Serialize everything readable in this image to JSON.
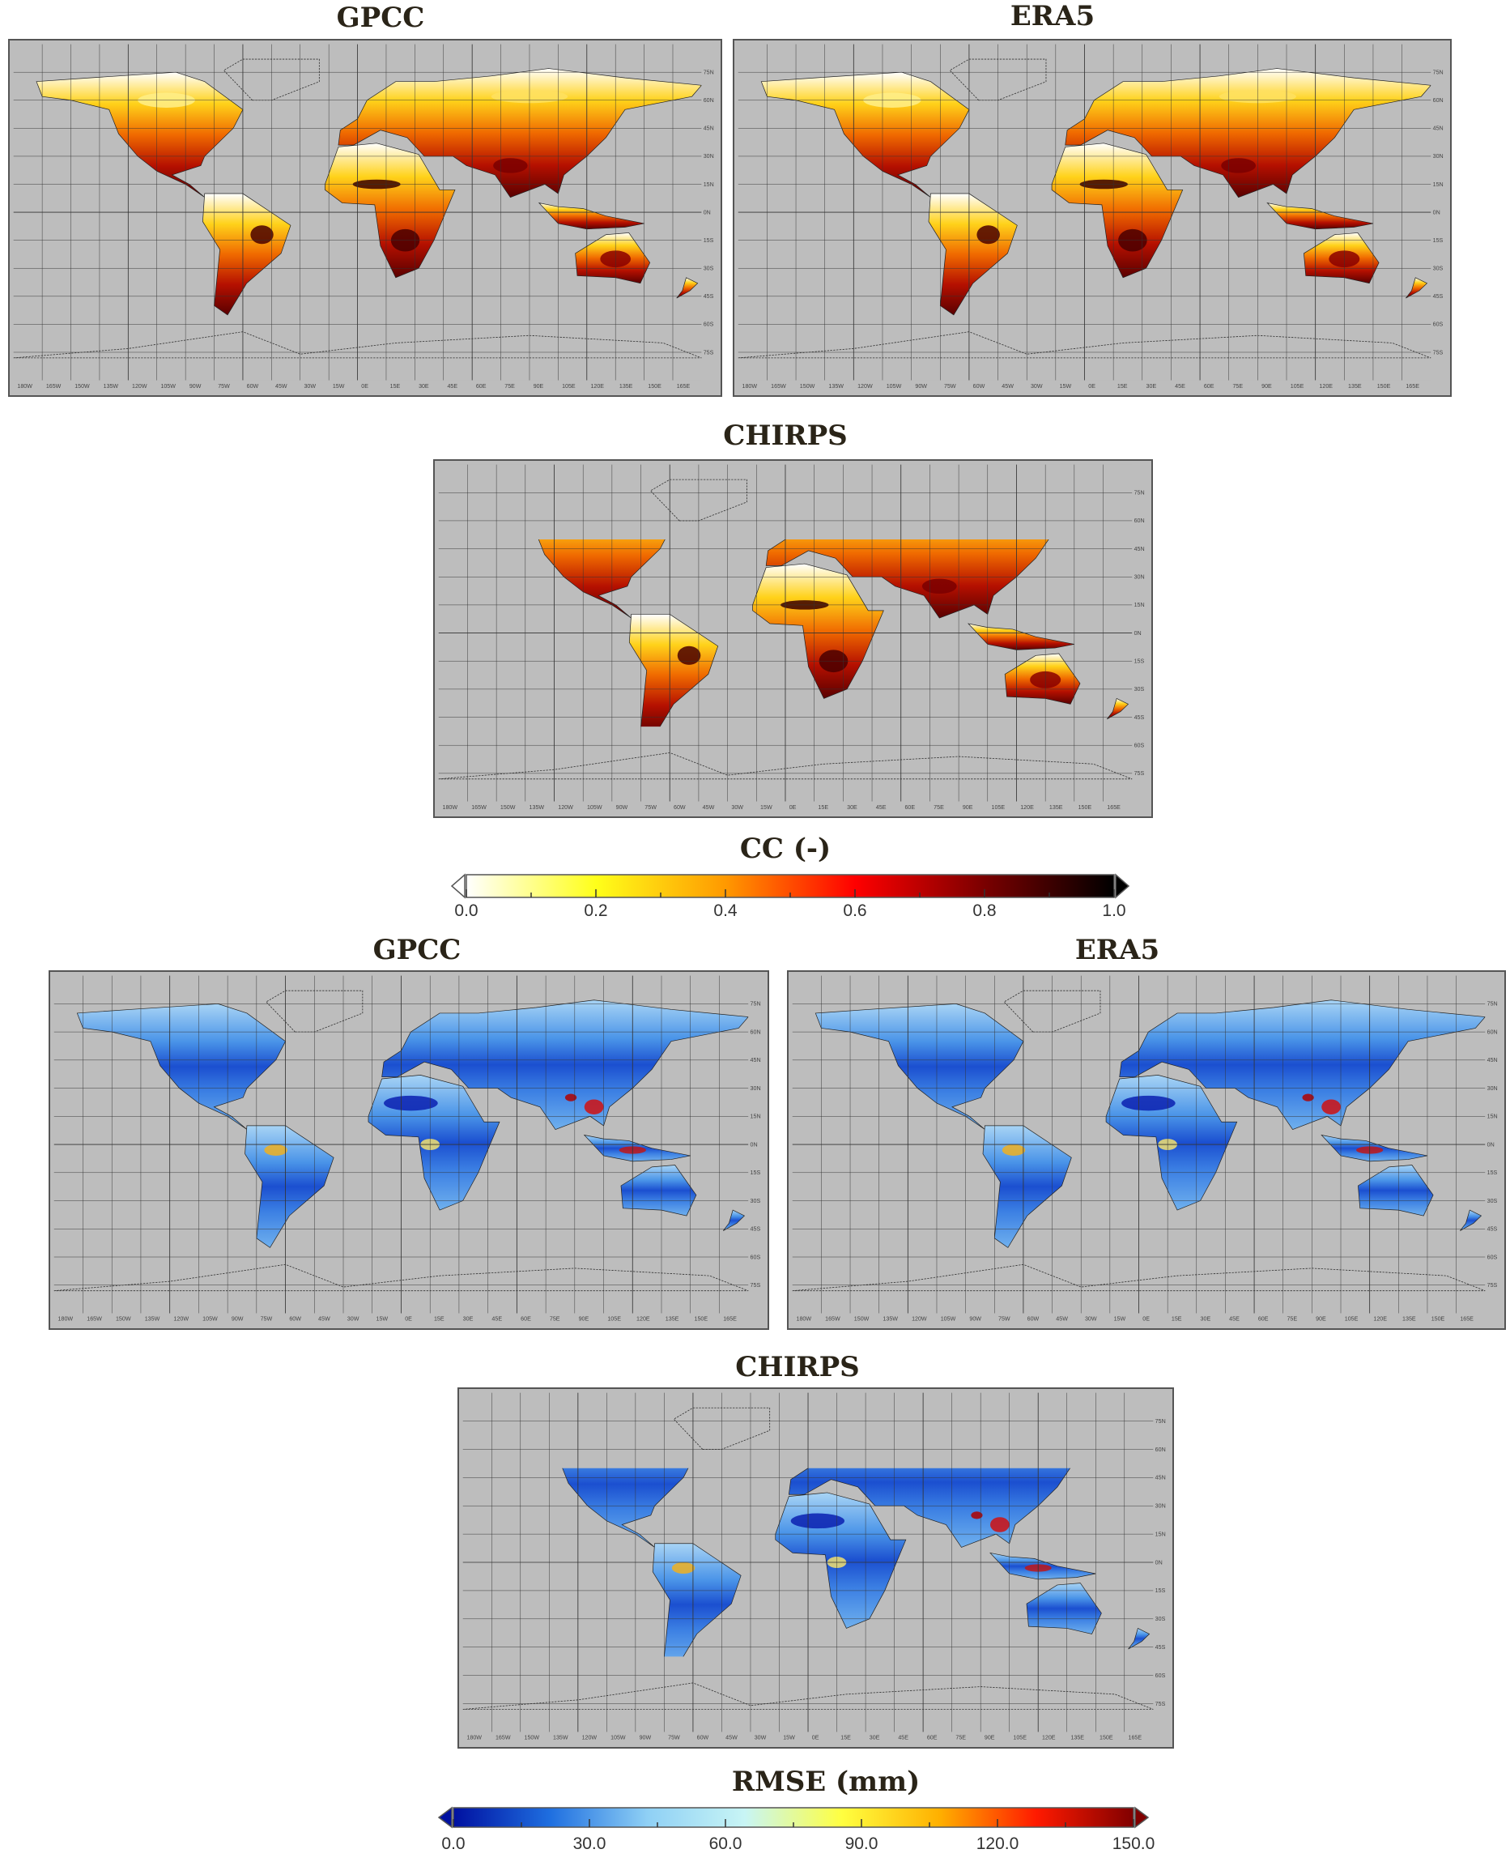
{
  "cc_section": {
    "maps": [
      {
        "id": "cc-gpcc",
        "title": "GPCC",
        "palette": "cc"
      },
      {
        "id": "cc-era5",
        "title": "ERA5",
        "palette": "cc"
      },
      {
        "id": "cc-chirps",
        "title": "CHIRPS",
        "palette": "cc",
        "lat_range": [
          -50,
          50
        ]
      }
    ],
    "colorbar": {
      "title": "CC (-)",
      "ticks": [
        "0.0",
        "0.2",
        "0.4",
        "0.6",
        "0.8",
        "1.0"
      ],
      "range": [
        0,
        1
      ],
      "colors": [
        "#ffffff",
        "#ffff1a",
        "#ff9900",
        "#ff0000",
        "#7a0000",
        "#000000"
      ],
      "extend_low_color": "#ffffff",
      "extend_high_color": "#000000"
    }
  },
  "rmse_section": {
    "maps": [
      {
        "id": "rmse-gpcc",
        "title": "GPCC",
        "palette": "rmse"
      },
      {
        "id": "rmse-era5",
        "title": "ERA5",
        "palette": "rmse"
      },
      {
        "id": "rmse-chirps",
        "title": "CHIRPS",
        "palette": "rmse",
        "lat_range": [
          -50,
          50
        ]
      }
    ],
    "colorbar": {
      "title": "RMSE (mm)",
      "ticks": [
        "0.0",
        "30.0",
        "60.0",
        "90.0",
        "120.0",
        "150.0"
      ],
      "range": [
        0,
        150
      ],
      "colors": [
        "#0010a0",
        "#1f6fe0",
        "#8fd0f5",
        "#c8f5f5",
        "#ffff40",
        "#ffb000",
        "#ff1a00",
        "#800000"
      ],
      "extend_low_color": "#0010a0",
      "extend_high_color": "#800000"
    }
  },
  "axes": {
    "lon_ticks": [
      "180W",
      "165W",
      "150W",
      "135W",
      "120W",
      "105W",
      "90W",
      "75W",
      "60W",
      "45W",
      "30W",
      "15W",
      "0E",
      "15E",
      "30E",
      "45E",
      "60E",
      "75E",
      "90E",
      "105E",
      "120E",
      "135E",
      "150E",
      "165E"
    ],
    "lat_ticks": [
      "75N",
      "60N",
      "45N",
      "30N",
      "15N",
      "0N",
      "15S",
      "30S",
      "45S",
      "60S",
      "75S"
    ]
  },
  "colors": {
    "ocean": "#bdbdbd",
    "grid": "#333333",
    "title": "#2a2418"
  }
}
